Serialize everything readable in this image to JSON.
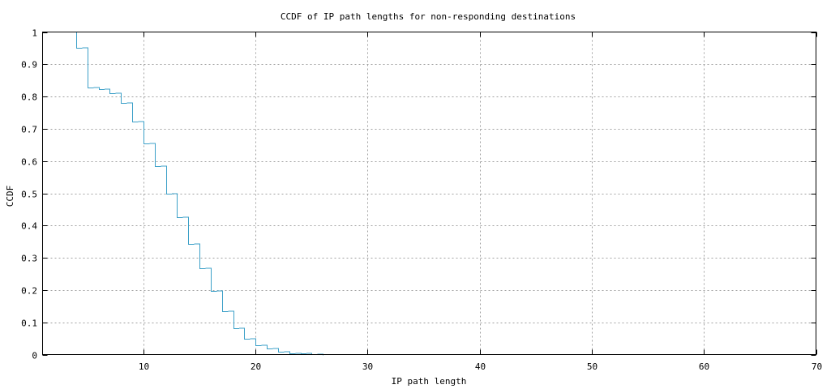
{
  "chart_data": {
    "type": "line",
    "step": true,
    "title": "CCDF of IP path lengths for non-responding destinations",
    "xlabel": "IP path length",
    "ylabel": "CCDF",
    "xlim": [
      1,
      70
    ],
    "ylim": [
      0,
      1
    ],
    "xticks": [
      10,
      20,
      30,
      40,
      50,
      60,
      70
    ],
    "yticks": [
      0,
      0.1,
      0.2,
      0.3,
      0.4,
      0.5,
      0.6,
      0.7,
      0.8,
      0.9,
      1
    ],
    "ytick_labels": [
      "0",
      "0.1",
      "0.2",
      "0.3",
      "0.4",
      "0.5",
      "0.6",
      "0.7",
      "0.8",
      "0.9",
      "1"
    ],
    "xtick_labels": [
      "10",
      "20",
      "30",
      "40",
      "50",
      "60",
      "70"
    ],
    "grid": true,
    "series": [
      {
        "color": "#3ca0c8",
        "x": [
          4,
          5,
          6,
          7,
          8,
          9,
          10,
          11,
          12,
          13,
          14,
          15,
          16,
          17,
          18,
          19,
          20,
          21,
          22,
          23,
          24,
          25,
          26
        ],
        "y": [
          0.95,
          0.827,
          0.823,
          0.81,
          0.78,
          0.723,
          0.655,
          0.583,
          0.5,
          0.427,
          0.342,
          0.268,
          0.197,
          0.135,
          0.082,
          0.05,
          0.03,
          0.018,
          0.01,
          0.005,
          0.003,
          0.002,
          0.0
        ]
      }
    ]
  }
}
